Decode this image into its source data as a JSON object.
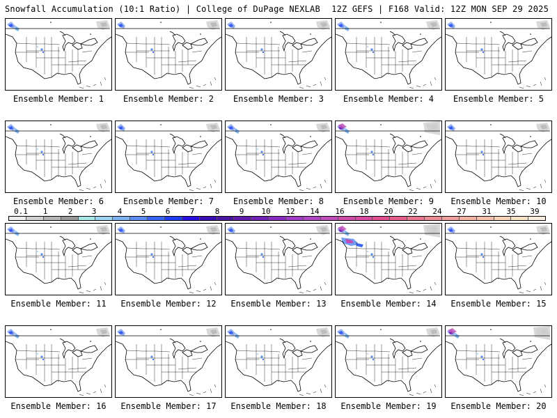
{
  "header": {
    "left": "Snowfall Accumulation (10:1 Ratio) | College of DuPage NEXLAB",
    "right": "12Z GEFS | F168 Valid: 12Z MON SEP 29 2025"
  },
  "panels": [
    {
      "label": "Ensemble Member: 1",
      "intensity": 2
    },
    {
      "label": "Ensemble Member: 2",
      "intensity": 1
    },
    {
      "label": "Ensemble Member: 3",
      "intensity": 1
    },
    {
      "label": "Ensemble Member: 4",
      "intensity": 2
    },
    {
      "label": "Ensemble Member: 5",
      "intensity": 1
    },
    {
      "label": "Ensemble Member: 6",
      "intensity": 2
    },
    {
      "label": "Ensemble Member: 7",
      "intensity": 1
    },
    {
      "label": "Ensemble Member: 8",
      "intensity": 2
    },
    {
      "label": "Ensemble Member: 9",
      "intensity": 3
    },
    {
      "label": "Ensemble Member: 10",
      "intensity": 1
    },
    {
      "label": "Ensemble Member: 11",
      "intensity": 2
    },
    {
      "label": "Ensemble Member: 12",
      "intensity": 1
    },
    {
      "label": "Ensemble Member: 13",
      "intensity": 1
    },
    {
      "label": "Ensemble Member: 14",
      "intensity": 4
    },
    {
      "label": "Ensemble Member: 15",
      "intensity": 1
    },
    {
      "label": "Ensemble Member: 16",
      "intensity": 2
    },
    {
      "label": "Ensemble Member: 17",
      "intensity": 1
    },
    {
      "label": "Ensemble Member: 18",
      "intensity": 2
    },
    {
      "label": "Ensemble Member: 19",
      "intensity": 2
    },
    {
      "label": "Ensemble Member: 20",
      "intensity": 3
    }
  ],
  "colorbar": {
    "ticks": [
      "0.1",
      "1",
      "2",
      "3",
      "4",
      "5",
      "6",
      "7",
      "8",
      "9",
      "10",
      "12",
      "14",
      "16",
      "18",
      "20",
      "22",
      "24",
      "27",
      "31",
      "35",
      "39"
    ],
    "colors": [
      "#ececec",
      "#d0d0d0",
      "#b4b4b4",
      "#989898",
      "#a6e6e6",
      "#9cd2f2",
      "#7fb2f0",
      "#5b8ef0",
      "#3866f2",
      "#1e3cf0",
      "#2a10e0",
      "#3a0eb0",
      "#4b149e",
      "#5e1ca8",
      "#7024b4",
      "#8a2cc0",
      "#a23ac8",
      "#b046c4",
      "#c04cb8",
      "#cc4ca8",
      "#d64ca0",
      "#de5090",
      "#e4608c",
      "#e87890",
      "#ec8c94",
      "#f0a09a",
      "#f2b2a2",
      "#f4c2ac",
      "#f6d2b6",
      "#f8e2c6",
      "#faecda"
    ]
  }
}
